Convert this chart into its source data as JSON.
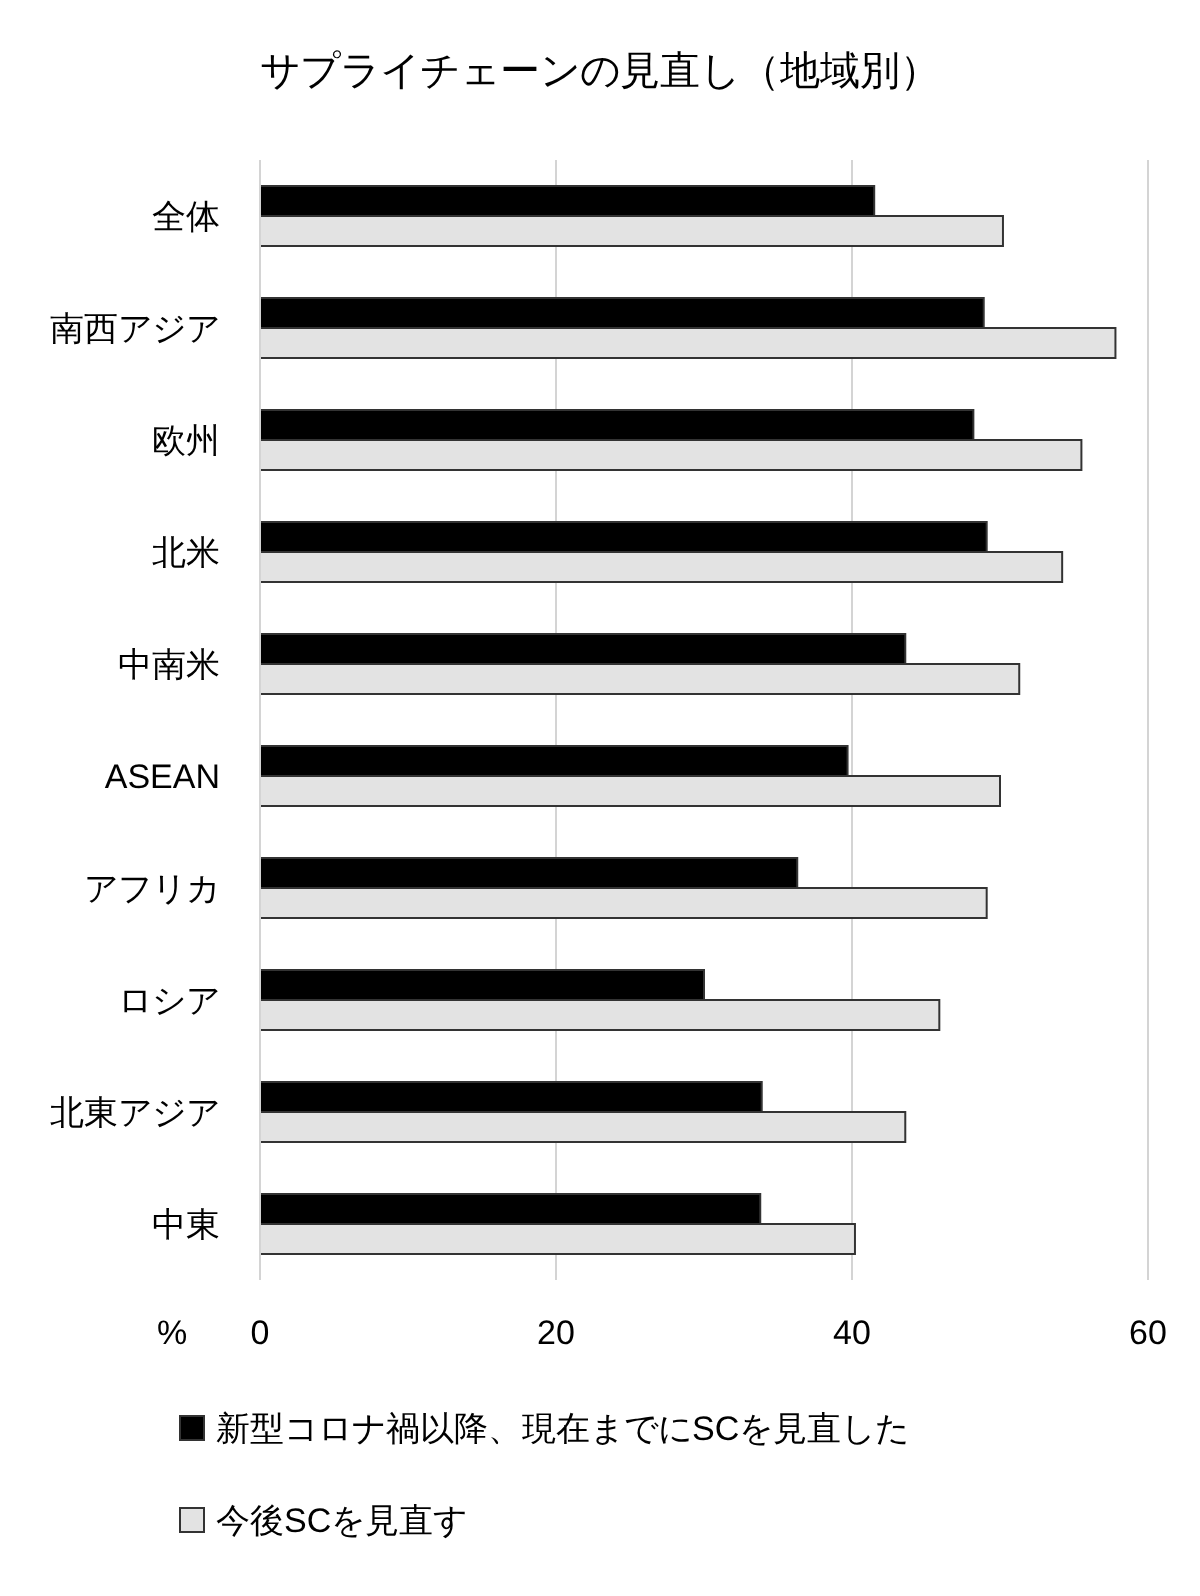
{
  "chart_data": {
    "type": "bar",
    "orientation": "horizontal",
    "title": "サプライチェーンの見直し（地域別）",
    "xlabel": "%",
    "categories": [
      "全体",
      "南西アジア",
      "欧州",
      "北米",
      "中南米",
      "ASEAN",
      "アフリカ",
      "ロシア",
      "北東アジア",
      "中東"
    ],
    "series": [
      {
        "name": "新型コロナ禍以降、現在までにSCを見直した",
        "color": "#000000",
        "values": [
          41.5,
          48.9,
          48.2,
          49.1,
          43.6,
          39.7,
          36.3,
          30.0,
          33.9,
          33.8
        ]
      },
      {
        "name": "今後SCを見直す",
        "color": "#e3e3e3",
        "values": [
          50.2,
          57.8,
          55.5,
          54.2,
          51.3,
          50.0,
          49.1,
          45.9,
          43.6,
          40.2
        ]
      }
    ],
    "xlim": [
      0,
      60
    ],
    "xticks": [
      0,
      20,
      40,
      60
    ],
    "grid": "x",
    "legend": "bottom"
  }
}
